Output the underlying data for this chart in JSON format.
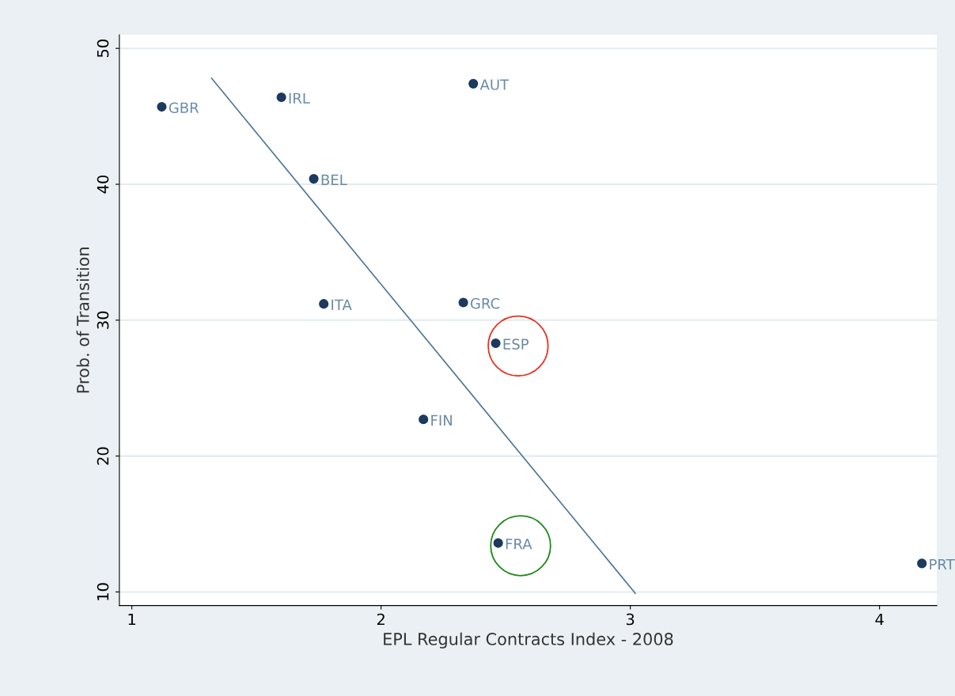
{
  "chart_data": {
    "type": "scatter",
    "xlabel": "EPL Regular Contracts Index - 2008",
    "ylabel": "Prob. of Transition",
    "xlim": [
      0.95,
      4.23
    ],
    "ylim": [
      9,
      51
    ],
    "xticks": [
      1,
      2,
      3,
      4
    ],
    "yticks": [
      10,
      20,
      30,
      40,
      50
    ],
    "grid": "y",
    "series": [
      {
        "marker": "circle",
        "color": "#1b3a5e",
        "x": [
          1.12,
          1.6,
          2.37,
          1.73,
          1.77,
          2.33,
          2.46,
          2.17,
          2.47,
          4.17
        ],
        "values": [
          45.7,
          46.4,
          47.4,
          40.4,
          31.2,
          31.3,
          28.3,
          22.7,
          13.6,
          12.1
        ],
        "value_labels": [
          "GBR",
          "IRL",
          "AUT",
          "BEL",
          "ITA",
          "GRC",
          "ESP",
          "FIN",
          "FRA",
          "PRT"
        ]
      },
      {
        "type": "line",
        "color": "#4a7494",
        "x": [
          1.32,
          3.02
        ],
        "values": [
          47.8,
          9.9
        ],
        "line_style": "solid"
      }
    ]
  }
}
